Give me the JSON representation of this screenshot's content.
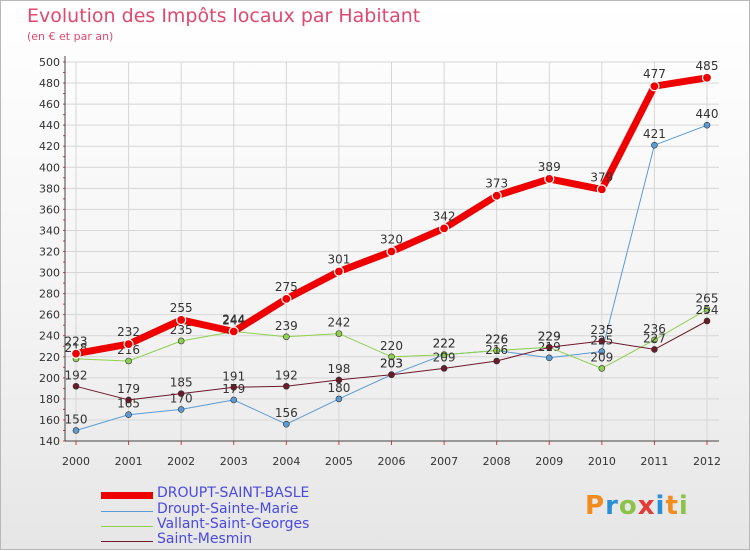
{
  "title": "Evolution des Impôts locaux par Habitant",
  "subtitle": "(en € et par an)",
  "logo": {
    "p": "P",
    "r": "r",
    "o": "o",
    "x": "x",
    "i": "i",
    "t": "t",
    "i2": "i"
  },
  "chart_data": {
    "type": "line",
    "categories": [
      "2000",
      "2001",
      "2002",
      "2003",
      "2004",
      "2005",
      "2006",
      "2007",
      "2008",
      "2009",
      "2010",
      "2011",
      "2012"
    ],
    "ylim": [
      140,
      500
    ],
    "yticks": [
      140,
      160,
      180,
      200,
      220,
      240,
      260,
      280,
      300,
      320,
      340,
      360,
      380,
      400,
      420,
      440,
      460,
      480,
      500
    ],
    "grid": true,
    "legend_position": "bottom-left",
    "series": [
      {
        "name": "DROUPT-SAINT-BASLE",
        "color": "#ee0000",
        "width": 7,
        "values": [
          223,
          232,
          255,
          244,
          275,
          301,
          320,
          342,
          373,
          389,
          379,
          477,
          485
        ]
      },
      {
        "name": "Droupt-Sainte-Marie",
        "color": "#5b9bd5",
        "width": 1,
        "values": [
          150,
          165,
          170,
          179,
          156,
          180,
          203,
          222,
          226,
          219,
          225,
          421,
          440
        ]
      },
      {
        "name": "Vallant-Saint-Georges",
        "color": "#8fd14f",
        "width": 1,
        "values": [
          218,
          216,
          235,
          244,
          239,
          242,
          220,
          222,
          226,
          229,
          209,
          236,
          265
        ]
      },
      {
        "name": "Saint-Mesmin",
        "color": "#6b1a2a",
        "width": 1,
        "values": [
          192,
          179,
          185,
          191,
          192,
          198,
          203,
          209,
          216,
          229,
          235,
          227,
          254
        ]
      }
    ]
  }
}
